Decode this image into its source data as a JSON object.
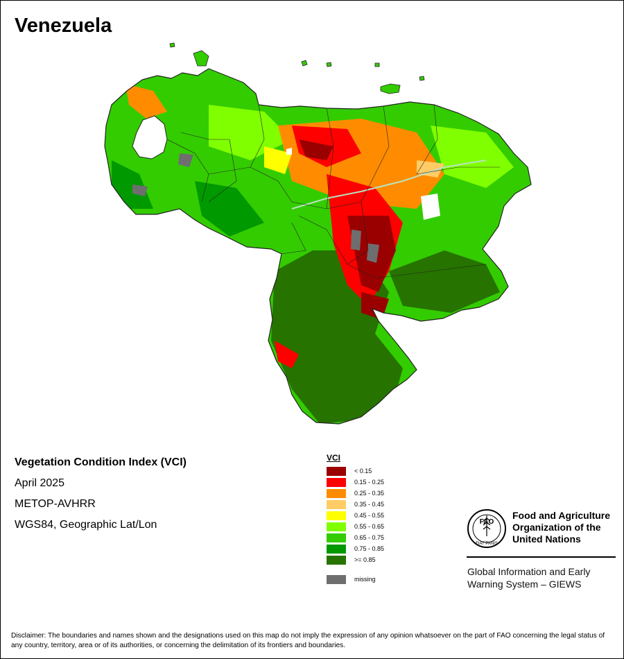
{
  "title": "Venezuela",
  "info": {
    "index_title": "Vegetation Condition Index (VCI)",
    "period": "April 2025",
    "sensor": "METOP-AVHRR",
    "projection": "WGS84, Geographic Lat/Lon"
  },
  "legend": {
    "title": "VCI",
    "classes": [
      {
        "label": "< 0.15",
        "color": "#9a0000"
      },
      {
        "label": "0.15 - 0.25",
        "color": "#ff0000"
      },
      {
        "label": "0.25 - 0.35",
        "color": "#ff8c00"
      },
      {
        "label": "0.35 - 0.45",
        "color": "#ffcc66"
      },
      {
        "label": "0.45 - 0.55",
        "color": "#ffff00"
      },
      {
        "label": "0.55 - 0.65",
        "color": "#80ff00"
      },
      {
        "label": "0.65 - 0.75",
        "color": "#33cc00"
      },
      {
        "label": "0.75 - 0.85",
        "color": "#009900"
      },
      {
        "label": ">= 0.85",
        "color": "#267300"
      }
    ],
    "missing": {
      "label": "missing",
      "color": "#6e6e6e"
    }
  },
  "fao": {
    "name": "Food and Agriculture\nOrganization of the\nUnited Nations",
    "system": "Global Information and Early\nWarning System – GIEWS",
    "emblem_text": "FAO",
    "emblem_motto": "FIAT PANIS"
  },
  "disclaimer": "Disclaimer: The boundaries and names shown and the designations used on this map do not imply the expression of any opinion whatsoever on the part of FAO concerning the legal status of any country, territory, area or of its authorities, or concerning the delimitation of its frontiers and boundaries."
}
